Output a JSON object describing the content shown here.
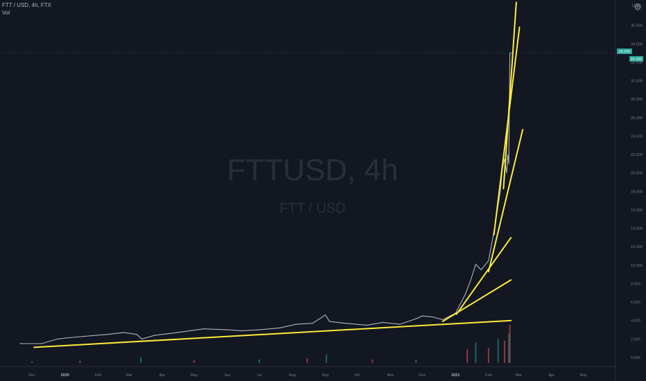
{
  "header": {
    "symbol_line": "FTT / USD, 4h, FTX",
    "vol_label": "Vol"
  },
  "watermark": {
    "title": "FTTUSD, 4h",
    "subtitle": "FTT / USD"
  },
  "price_axis": {
    "currency": "USD",
    "last_price_label": "33.000",
    "last_price_sub": "33.000"
  },
  "icons": {
    "settings": "gear-icon"
  },
  "colors": {
    "background": "#131722",
    "up": "#26a69a",
    "down": "#ef5350",
    "trendline": "#ffeb3b",
    "axis_text": "#787b86",
    "watermark": "#2a2e39"
  },
  "chart_data": {
    "type": "line",
    "title": "FTTUSD, 4h",
    "xlabel": "",
    "ylabel": "USD",
    "x_ticks": [
      "Dec",
      "2020",
      "Feb",
      "Mar",
      "Apr",
      "May",
      "Jun",
      "Jul",
      "Aug",
      "Sep",
      "Oct",
      "Nov",
      "Dec",
      "2021",
      "Feb",
      "Mar",
      "Apr",
      "May"
    ],
    "y_ticks": [
      0,
      2,
      4,
      6,
      8,
      10,
      12,
      14,
      16,
      18,
      20,
      22,
      24,
      26,
      28,
      30,
      32,
      34,
      36
    ],
    "ylim": [
      -0.6,
      38.6
    ],
    "grid": false,
    "series": [
      {
        "x": [
          "2019-11-20",
          "2019-12-10",
          "2019-12-25",
          "2020-01-01",
          "2020-01-20",
          "2020-02-10",
          "2020-02-25",
          "2020-03-08",
          "2020-03-13",
          "2020-03-25",
          "2020-04-15",
          "2020-05-10",
          "2020-06-01",
          "2020-06-15",
          "2020-07-01",
          "2020-07-20",
          "2020-08-05",
          "2020-08-20",
          "2020-09-01",
          "2020-09-05",
          "2020-09-20",
          "2020-10-10",
          "2020-10-25",
          "2020-11-10",
          "2020-11-25",
          "2020-12-01",
          "2020-12-10",
          "2020-12-20",
          "2021-01-01",
          "2021-01-10",
          "2021-01-15",
          "2021-01-20",
          "2021-01-25",
          "2021-02-01",
          "2021-02-05",
          "2021-02-08",
          "2021-02-12",
          "2021-02-14",
          "2021-02-16",
          "2021-02-18",
          "2021-02-19",
          "2021-02-20",
          "2021-02-21",
          "2021-02-22"
        ],
        "values": [
          1.5,
          1.5,
          2.0,
          2.1,
          2.3,
          2.5,
          2.7,
          2.5,
          2.0,
          2.4,
          2.7,
          3.1,
          3.0,
          2.9,
          3.0,
          3.2,
          3.6,
          3.7,
          4.6,
          3.9,
          3.7,
          3.5,
          3.8,
          3.6,
          4.2,
          4.5,
          4.4,
          4.1,
          4.8,
          6.8,
          8.3,
          10.1,
          9.5,
          10.5,
          13.0,
          15.0,
          18.0,
          20.5,
          21.5,
          20.0,
          22.0,
          21.0,
          33.0,
          33.0
        ]
      }
    ],
    "volume": {
      "label": "Vol",
      "x": [
        "2019-12-01",
        "2020-01-15",
        "2020-03-12",
        "2020-05-01",
        "2020-07-01",
        "2020-08-15",
        "2020-09-02",
        "2020-10-15",
        "2020-11-25",
        "2021-01-12",
        "2021-01-20",
        "2021-02-01",
        "2021-02-10",
        "2021-02-16",
        "2021-02-20",
        "2021-02-21"
      ],
      "values": [
        0.3,
        0.4,
        1.0,
        0.5,
        0.6,
        0.8,
        1.4,
        0.6,
        0.5,
        2.4,
        3.5,
        2.6,
        4.1,
        3.8,
        5.0,
        6.5
      ]
    },
    "trendlines": [
      {
        "from": [
          "2019-12-03",
          1.1
        ],
        "to": [
          "2021-02-22",
          4.0
        ]
      },
      {
        "from": [
          "2020-12-20",
          3.9
        ],
        "to": [
          "2021-02-22",
          8.4
        ]
      },
      {
        "from": [
          "2021-01-02",
          4.7
        ],
        "to": [
          "2021-02-22",
          13.0
        ]
      },
      {
        "from": [
          "2021-02-01",
          9.3
        ],
        "to": [
          "2021-03-05",
          24.7
        ]
      },
      {
        "from": [
          "2021-02-06",
          13.3
        ],
        "to": [
          "2021-03-02",
          35.8
        ]
      },
      {
        "from": [
          "2021-02-15",
          18.3
        ],
        "to": [
          "2021-02-27",
          38.5
        ]
      }
    ]
  }
}
